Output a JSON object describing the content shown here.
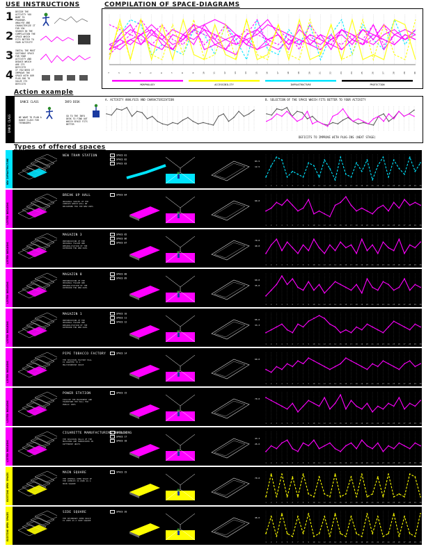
{
  "use_instructions": {
    "title": "USE INSTRUCTIONS",
    "steps": [
      {
        "num": "1",
        "text": "DECIDE THE ACTIVITY YOU WANT TO PROGRAM. ANALYSE AND CHARACTERIZE IT FOR YOU"
      },
      {
        "num": "2",
        "text": "SEARCH IN THE COMPILATION THE SPACE WHICH FITS BETTER TO YOUR ACTIVITY"
      },
      {
        "num": "3",
        "text": "INSTAL THE MOST SUITABLE SPACE FOR YOUR ACTIVITY AND DEDUCE WHICH ARE ITS DEFICITS"
      },
      {
        "num": "4",
        "text": "IF YOU NEED IT IMPROVE THE SPACE WITH OUR PLUG-INS TO SOLVE ITS DEFICITS"
      }
    ]
  },
  "compilation": {
    "title": "COMPILATION OF SPACE-DIAGRAMS",
    "categories": [
      "MORPHOLOGY",
      "ACCESSIBILITY",
      "INFRASTRUCTURE",
      "PROTECTION"
    ],
    "category_colors": [
      "#ff00ff",
      "#ffff00",
      "#00e5ff",
      "#ffffff"
    ]
  },
  "action": {
    "title": "Action example",
    "side_label": "DANCE CLASS",
    "dance_label": "DANCE CLASS",
    "info_label": "INFO DESK",
    "dance_text": "WE WANT TO PLAN A DANCE CLASS FOR TEENAGERS",
    "info_text": "GO TO THE INFO DESK TO FIND OUT WHICH SPACE FITS BETTER",
    "panel_a_title": "A. ACTIVITY ANALYSIS AND CHARACTERIZATION",
    "panel_b_title": "B. SELECTION OF THE SPACE WHICH FITS BETTER TO YOUR ACTIVITY",
    "deficits_label": "DEFICITS TO IMPROVE WITH PLUG-INS (NEXT STAGE)"
  },
  "types": {
    "title": "Types of offered spaces",
    "rows": [
      {
        "name": "NEW TRAM STATION",
        "group": "NEW INFRASTRUCTURE",
        "color": "#00e5ff",
        "spaces": [
          "SPACE 01",
          "SPACE 02",
          "SPACE 03"
        ],
        "desc": "",
        "values_a": [
          "83.5",
          "12.5"
        ]
      },
      {
        "name": "BREAK UP HALL",
        "group": "LISTED BUILDING",
        "color": "#ff00ff",
        "spaces": [
          "SPACE 04"
        ],
        "desc": "ORIGINAL SPACES OF THE COMPLEX WHICH WILL BE RECOVERED FOR THE NEW USES",
        "values_a": [
          "60.0"
        ]
      },
      {
        "name": "MAGAZIN 3",
        "group": "LISTED BUILDING",
        "color": "#ff00ff",
        "spaces": [
          "SPACE 05",
          "SPACE 06",
          "SPACE 07"
        ],
        "desc": "PRESERVATION OF THE ORIGINAL FACADE AND REHABILITATION OF THE INTERIOR FOR NEW USES",
        "values_a": [
          "70.0",
          "40.0"
        ]
      },
      {
        "name": "MAGAZIN 8",
        "group": "LISTED BUILDING",
        "color": "#ff00ff",
        "spaces": [
          "SPACE 08",
          "SPACE 09"
        ],
        "desc": "PRESERVATION OF THE ORIGINAL FACADE AND REHABILITATION OF THE INTERIOR FOR NEW USES",
        "values_a": [
          "60.0",
          "35.0"
        ]
      },
      {
        "name": "MAGAZIN 1",
        "group": "LISTED BUILDING",
        "color": "#ff00ff",
        "spaces": [
          "SPACE 10",
          "SPACE 11",
          "SPACE 12"
        ],
        "desc": "PRESERVATION OF THE ORIGINAL FACADE AND REHABILITATION OF THE INTERIOR FOR NEW USES",
        "values_a": [
          "66.6",
          "33.3"
        ]
      },
      {
        "name": "PIPE TOBACCO FACTORY",
        "group": "LISTED BUILDING",
        "color": "#ff00ff",
        "spaces": [
          "SPACE 14"
        ],
        "desc": "THE SPACIOUS FACTORY HALL IS ADAPTED TO A MULTIPURPOSE SPACE",
        "values_a": [
          "60.0"
        ]
      },
      {
        "name": "POWER STATION",
        "group": "LISTED BUILDING",
        "color": "#ff00ff",
        "spaces": [
          "SPACE 15"
        ],
        "desc": "ISOLATE THE MACHINERY AND TRANSFORM THE HALL FOR PUBLIC USES",
        "values_a": [
          "70.0"
        ]
      },
      {
        "name": "CIGARETTE MANUFACTURING BUILDING",
        "group": "LISTED BUILDING",
        "color": "#ff00ff",
        "spaces": [
          "SPACE 16",
          "SPACE 17",
          "SPACE 18"
        ],
        "desc": "THE SPACIOUS HALLS OF THE BUILDING ARE SUBDIVIDED IN DIFFERENT UNITS",
        "values_a": [
          "43.3",
          "26.6"
        ]
      },
      {
        "name": "MAIN SQUARE",
        "group": "EXISTING OPEN SPACES",
        "color": "#ffff00",
        "spaces": [
          "SPACE 19"
        ],
        "desc": "THE CENTRAL OPEN SPACE OF THE COMPLEX IS USED AS A MAIN SQUARE",
        "values_a": [
          "70.0"
        ]
      },
      {
        "name": "SIDE SQUARE",
        "group": "EXISTING OPEN SPACES",
        "color": "#ffff00",
        "spaces": [
          "SPACE 20"
        ],
        "desc": "THE SECONDARY OPEN SPACE IS USED AS A SIDE SQUARE",
        "values_a": [
          "46.6"
        ]
      }
    ]
  },
  "chart_data": {
    "type": "line",
    "x": [
      1,
      2,
      3,
      4,
      5,
      6,
      7,
      8,
      9,
      10,
      11,
      12,
      13,
      14,
      15,
      16,
      17,
      18,
      19,
      20,
      21,
      22,
      23,
      24,
      25,
      26,
      27,
      28,
      29,
      30
    ],
    "activity_profile": [
      70,
      65,
      90,
      85,
      95,
      60,
      80,
      75,
      50,
      60,
      40,
      30,
      25,
      35,
      30,
      45,
      55,
      40,
      30,
      35,
      30,
      25,
      60,
      70,
      40,
      55,
      80,
      60,
      70,
      85
    ],
    "series": [
      {
        "name": "SPACE 01",
        "color": "#00e5ff",
        "values": [
          20,
          60,
          90,
          80,
          20,
          40,
          30,
          20,
          70,
          60,
          20,
          80,
          50,
          10,
          90,
          30,
          20,
          70,
          40,
          80,
          10,
          60,
          90,
          20,
          80,
          50,
          30,
          90,
          40,
          70
        ]
      },
      {
        "name": "SPACE 04",
        "color": "#ff00ff",
        "values": [
          40,
          50,
          70,
          60,
          80,
          60,
          40,
          50,
          80,
          30,
          40,
          30,
          20,
          60,
          70,
          90,
          60,
          40,
          50,
          40,
          30,
          50,
          60,
          40,
          70,
          50,
          80,
          60,
          70,
          60
        ]
      },
      {
        "name": "SPACE 05",
        "color": "#ff00ff",
        "values": [
          30,
          60,
          80,
          40,
          70,
          50,
          30,
          60,
          40,
          80,
          50,
          30,
          60,
          40,
          70,
          50,
          60,
          30,
          80,
          40,
          60,
          30,
          70,
          50,
          40,
          80,
          30,
          60,
          50,
          70
        ]
      },
      {
        "name": "SPACE 08",
        "color": "#ff00ff",
        "values": [
          20,
          40,
          60,
          90,
          60,
          80,
          50,
          40,
          70,
          40,
          60,
          30,
          50,
          70,
          60,
          50,
          40,
          60,
          30,
          80,
          50,
          40,
          70,
          60,
          40,
          50,
          80,
          40,
          60,
          50
        ]
      },
      {
        "name": "SPACE 10",
        "color": "#ff00ff",
        "values": [
          30,
          40,
          50,
          60,
          40,
          30,
          60,
          50,
          70,
          80,
          90,
          80,
          60,
          50,
          30,
          40,
          30,
          50,
          40,
          60,
          50,
          40,
          30,
          50,
          70,
          60,
          50,
          40,
          60,
          50
        ]
      },
      {
        "name": "SPACE 14",
        "color": "#ff00ff",
        "values": [
          40,
          30,
          50,
          40,
          60,
          50,
          70,
          60,
          80,
          70,
          60,
          50,
          40,
          50,
          60,
          80,
          70,
          60,
          50,
          40,
          60,
          50,
          70,
          60,
          50,
          40,
          60,
          70,
          50,
          60
        ]
      },
      {
        "name": "SPACE 15",
        "color": "#ff00ff",
        "values": [
          80,
          70,
          60,
          50,
          40,
          60,
          30,
          50,
          70,
          60,
          50,
          80,
          40,
          60,
          90,
          40,
          70,
          50,
          40,
          60,
          30,
          50,
          40,
          60,
          50,
          80,
          40,
          60,
          50,
          70
        ]
      },
      {
        "name": "SPACE 16",
        "color": "#ff00ff",
        "values": [
          30,
          50,
          40,
          60,
          70,
          40,
          30,
          60,
          50,
          70,
          40,
          50,
          60,
          40,
          30,
          50,
          60,
          40,
          70,
          50,
          40,
          60,
          30,
          50,
          40,
          60,
          50,
          40,
          60,
          50
        ]
      },
      {
        "name": "SPACE 19",
        "color": "#ffff00",
        "values": [
          10,
          90,
          10,
          90,
          10,
          80,
          10,
          90,
          20,
          10,
          80,
          20,
          10,
          90,
          10,
          20,
          80,
          10,
          90,
          10,
          20,
          80,
          10,
          90,
          10,
          20,
          10,
          90,
          80,
          10
        ]
      },
      {
        "name": "SPACE 20",
        "color": "#ffff00",
        "values": [
          20,
          80,
          10,
          90,
          20,
          10,
          80,
          20,
          90,
          10,
          20,
          80,
          10,
          90,
          20,
          10,
          80,
          20,
          10,
          90,
          20,
          80,
          10,
          20,
          90,
          10,
          80,
          20,
          10,
          90
        ]
      }
    ]
  }
}
